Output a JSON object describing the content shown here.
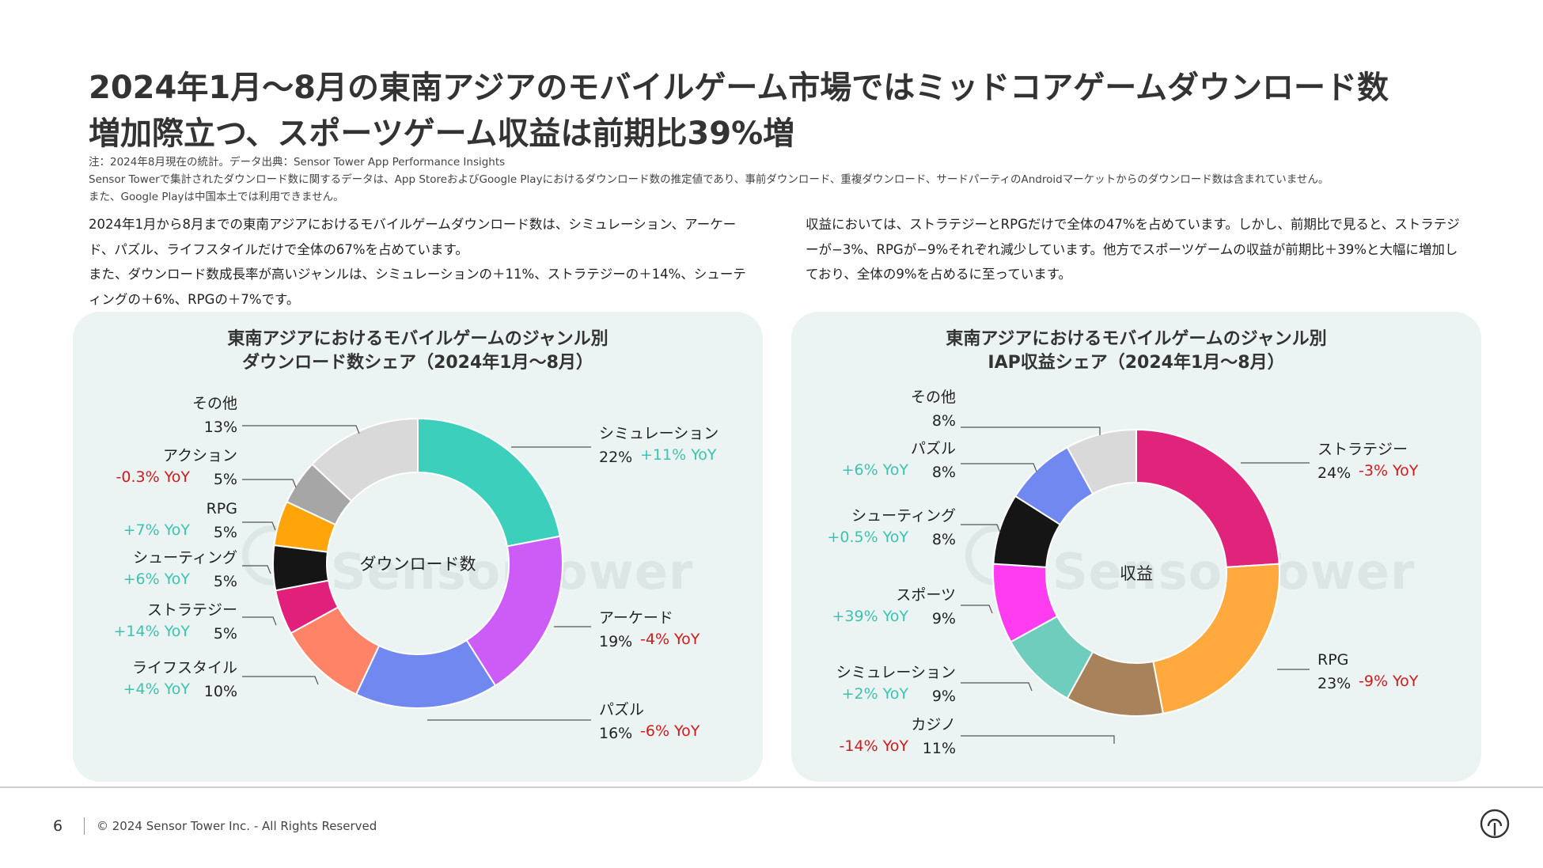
{
  "title": {
    "line1": "2024年1月〜8月の東南アジアのモバイルゲーム市場ではミッドコアゲームダウンロード数",
    "line2": "増加際立つ、スポーツゲーム収益は前期比39%増"
  },
  "notes": [
    "注：2024年8月現在の統計。データ出典：Sensor Tower App Performance Insights",
    "Sensor Towerで集計されたダウンロード数に関するデータは、App StoreおよびGoogle Playにおけるダウンロード数の推定値であり、事前ダウンロード、重複ダウンロード、サードパーティのAndroidマーケットからのダウンロード数は含まれていません。",
    "また、Google Playは中国本土では利用できません。"
  ],
  "left_paragraph": {
    "p1": "2024年1月から8月までの東南アジアにおけるモバイルゲームダウンロード数は、シミュレーション、アーケード、パズル、ライフスタイルだけで全体の67%を占めています。",
    "p2": "また、ダウンロード数成長率が高いジャンルは、シミュレーションの＋11%、ストラテジーの＋14%、シューティングの＋6%、RPGの＋7%です。"
  },
  "right_paragraph": {
    "p1": "収益においては、ストラテジーとRPGだけで全体の47%を占めています。しかし、前期比で見ると、ストラテジーが−3%、RPGが−9%それぞれ減少しています。他方でスポーツゲームの収益が前期比＋39%と大幅に増加しており、全体の9%を占めるに至っています。"
  },
  "watermark": "SensorTower",
  "footer": {
    "page_number": "6",
    "copyright": "© 2024 Sensor Tower Inc. - All Rights Reserved"
  },
  "colors": {
    "positive": "#3cc3b0",
    "negative": "#d11a1a"
  },
  "chart_data": [
    {
      "type": "pie",
      "title": "東南アジアにおけるモバイルゲームのジャンル別\nダウンロード数シェア（2024年1月〜8月）",
      "center_label": "ダウンロード数",
      "slices": [
        {
          "name": "シミュレーション",
          "value": 22,
          "pct": "22%",
          "yoy": "+11% YoY",
          "color": "#3ccfbb"
        },
        {
          "name": "アーケード",
          "value": 19,
          "pct": "19%",
          "yoy": "-4% YoY",
          "color": "#cc5cf5"
        },
        {
          "name": "パズル",
          "value": 16,
          "pct": "16%",
          "yoy": "-6% YoY",
          "color": "#7088ef"
        },
        {
          "name": "ライフスタイル",
          "value": 10,
          "pct": "10%",
          "yoy": "+4% YoY",
          "color": "#ff8467"
        },
        {
          "name": "ストラテジー",
          "value": 5,
          "pct": "5%",
          "yoy": "+14% YoY",
          "color": "#e0207a"
        },
        {
          "name": "シューティング",
          "value": 5,
          "pct": "5%",
          "yoy": "+6% YoY",
          "color": "#151515"
        },
        {
          "name": "RPG",
          "value": 5,
          "pct": "5%",
          "yoy": "+7% YoY",
          "color": "#ffa50a"
        },
        {
          "name": "アクション",
          "value": 5,
          "pct": "5%",
          "yoy": "-0.3% YoY",
          "color": "#a6a6a6"
        },
        {
          "name": "その他",
          "value": 13,
          "pct": "13%",
          "yoy": "",
          "color": "#d9d9d9"
        }
      ]
    },
    {
      "type": "pie",
      "title": "東南アジアにおけるモバイルゲームのジャンル別\nIAP収益シェア（2024年1月〜8月）",
      "center_label": "収益",
      "slices": [
        {
          "name": "ストラテジー",
          "value": 24,
          "pct": "24%",
          "yoy": "-3% YoY",
          "color": "#e0247c"
        },
        {
          "name": "RPG",
          "value": 23,
          "pct": "23%",
          "yoy": "-9% YoY",
          "color": "#ffa93e"
        },
        {
          "name": "カジノ",
          "value": 11,
          "pct": "11%",
          "yoy": "-14% YoY",
          "color": "#a8825a"
        },
        {
          "name": "シミュレーション",
          "value": 9,
          "pct": "9%",
          "yoy": "+2% YoY",
          "color": "#6fcdbd"
        },
        {
          "name": "スポーツ",
          "value": 9,
          "pct": "9%",
          "yoy": "+39% YoY",
          "color": "#ff3cf0"
        },
        {
          "name": "シューティング",
          "value": 8,
          "pct": "8%",
          "yoy": "+0.5% YoY",
          "color": "#151515"
        },
        {
          "name": "パズル",
          "value": 8,
          "pct": "8%",
          "yoy": "+6% YoY",
          "color": "#7088ef"
        },
        {
          "name": "その他",
          "value": 8,
          "pct": "8%",
          "yoy": "",
          "color": "#d9d9d9"
        }
      ]
    }
  ]
}
